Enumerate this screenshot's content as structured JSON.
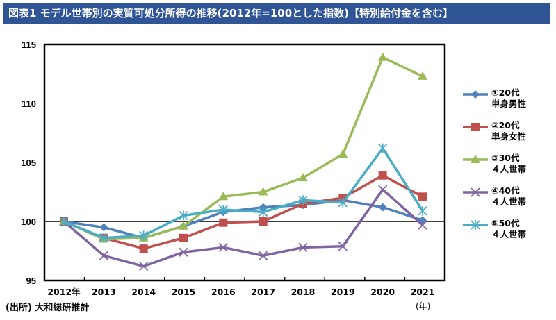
{
  "title": "図表1 モデル世帯別の実質可処分所得の推移(2012年=100とした指数)【特別給付金を含む】",
  "source": "(出所) 大和総研推計",
  "chart_data": {
    "type": "line",
    "title": "図表1 モデル世帯別の実質可処分所得の推移(2012年=100とした指数)【特別給付金を含む】",
    "xlabel": "(年)",
    "ylabel": "",
    "categories": [
      "2012年",
      "2013",
      "2014",
      "2015",
      "2016",
      "2017",
      "2018",
      "2019",
      "2020",
      "2021"
    ],
    "ylim": [
      95,
      115
    ],
    "yticks": [
      95,
      100,
      105,
      110,
      115
    ],
    "grid": false,
    "reference_line": 100,
    "legend_placement": "right",
    "series": [
      {
        "name": "①20代\n単身男性",
        "color": "#4f81bd",
        "marker": "diamond",
        "values": [
          100,
          99.5,
          98.6,
          99.6,
          100.8,
          101.2,
          101.4,
          101.8,
          101.2,
          100.1
        ]
      },
      {
        "name": "②20代\n単身女性",
        "color": "#c0504d",
        "marker": "square",
        "values": [
          100,
          98.6,
          97.7,
          98.6,
          99.9,
          100.0,
          101.5,
          102.0,
          103.9,
          102.1
        ]
      },
      {
        "name": "③30代\n４人世帯",
        "color": "#9bbb59",
        "marker": "triangle",
        "values": [
          100,
          98.5,
          98.6,
          99.6,
          102.1,
          102.5,
          103.7,
          105.7,
          113.9,
          112.3
        ]
      },
      {
        "name": "④40代\n４人世帯",
        "color": "#8064a2",
        "marker": "x",
        "values": [
          100,
          97.1,
          96.2,
          97.4,
          97.8,
          97.1,
          97.8,
          97.9,
          102.7,
          99.7
        ]
      },
      {
        "name": "⑤50代\n４人世帯",
        "color": "#4bacc6",
        "marker": "star",
        "values": [
          100,
          98.6,
          98.8,
          100.5,
          101.0,
          100.8,
          101.8,
          101.6,
          106.2,
          100.9
        ]
      }
    ]
  }
}
